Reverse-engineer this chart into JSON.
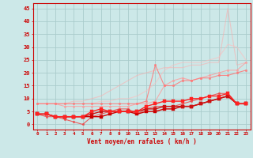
{
  "background_color": "#cce8e8",
  "grid_color": "#aacccc",
  "x_labels": [
    0,
    1,
    2,
    3,
    4,
    5,
    6,
    7,
    8,
    9,
    10,
    11,
    12,
    13,
    14,
    15,
    16,
    17,
    18,
    19,
    20,
    21,
    22,
    23
  ],
  "xlabel": "Vent moyen/en rafales ( km/h )",
  "ylabel_ticks": [
    0,
    5,
    10,
    15,
    20,
    25,
    30,
    35,
    40,
    45
  ],
  "ylim": [
    -2,
    47
  ],
  "series": [
    {
      "color": "#ffaaaa",
      "alpha": 0.55,
      "linewidth": 0.8,
      "marker": null,
      "markersize": 0,
      "values": [
        8,
        8,
        8,
        8,
        9,
        9,
        10,
        11,
        13,
        15,
        17,
        19,
        20,
        21,
        22,
        22,
        22,
        23,
        23,
        24,
        24,
        45,
        23,
        24
      ]
    },
    {
      "color": "#ffbbbb",
      "alpha": 0.6,
      "linewidth": 0.8,
      "marker": null,
      "markersize": 0,
      "values": [
        8,
        8,
        8,
        8,
        8,
        8,
        8,
        9,
        9,
        10,
        10,
        11,
        13,
        16,
        21,
        23,
        24,
        24,
        24,
        25,
        26,
        31,
        30,
        25
      ]
    },
    {
      "color": "#ff9999",
      "alpha": 0.75,
      "linewidth": 0.8,
      "marker": "o",
      "markersize": 1.8,
      "values": [
        8,
        8,
        8,
        7,
        7,
        7,
        7,
        7,
        7,
        7,
        7,
        8,
        8,
        9,
        15,
        17,
        18,
        17,
        18,
        19,
        20,
        21,
        21,
        24
      ]
    },
    {
      "color": "#ff7777",
      "alpha": 0.85,
      "linewidth": 0.8,
      "marker": "o",
      "markersize": 1.8,
      "values": [
        8,
        8,
        8,
        8,
        8,
        8,
        8,
        8,
        8,
        8,
        8,
        8,
        9,
        23,
        15,
        15,
        17,
        17,
        18,
        18,
        19,
        19,
        20,
        21
      ]
    },
    {
      "color": "#ee4444",
      "alpha": 0.85,
      "linewidth": 0.8,
      "marker": "o",
      "markersize": 1.8,
      "values": [
        4,
        3,
        3,
        2,
        1,
        0,
        3,
        4,
        5,
        6,
        6,
        4,
        6,
        7,
        7,
        7,
        8,
        9,
        10,
        11,
        12,
        12,
        8,
        8
      ]
    },
    {
      "color": "#cc0000",
      "alpha": 1.0,
      "linewidth": 1.0,
      "marker": "s",
      "markersize": 2.2,
      "values": [
        4,
        4,
        3,
        3,
        3,
        3,
        3,
        3,
        4,
        5,
        5,
        4,
        5,
        5,
        6,
        6,
        7,
        7,
        8,
        9,
        10,
        11,
        8,
        8
      ]
    },
    {
      "color": "#cc1111",
      "alpha": 1.0,
      "linewidth": 1.0,
      "marker": "s",
      "markersize": 2.2,
      "values": [
        4,
        4,
        3,
        3,
        3,
        3,
        4,
        5,
        5,
        5,
        5,
        5,
        6,
        6,
        7,
        7,
        7,
        7,
        8,
        9,
        10,
        11,
        8,
        8
      ]
    },
    {
      "color": "#ff2222",
      "alpha": 1.0,
      "linewidth": 1.0,
      "marker": "s",
      "markersize": 2.2,
      "values": [
        4,
        4,
        3,
        3,
        3,
        3,
        5,
        6,
        5,
        5,
        5,
        5,
        7,
        8,
        9,
        9,
        9,
        10,
        10,
        11,
        11,
        12,
        8,
        8
      ]
    }
  ]
}
